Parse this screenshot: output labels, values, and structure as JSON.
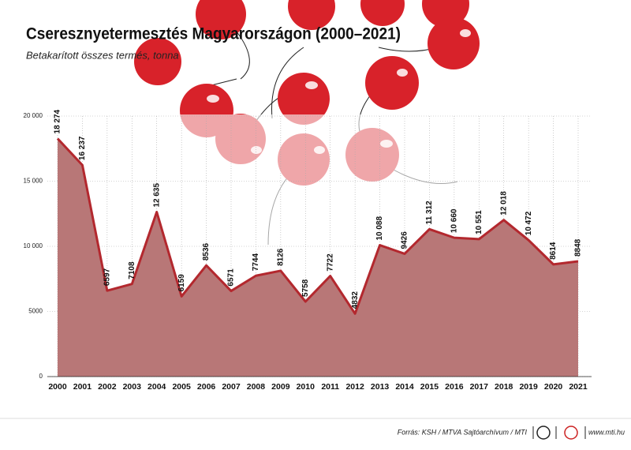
{
  "chart_data": {
    "type": "area",
    "title": "Cseresznyetermesztés Magyarországon (2000–2021)",
    "subtitle": "Betakarított összes termés, tonna",
    "categories": [
      "2000",
      "2001",
      "2002",
      "2003",
      "2004",
      "2005",
      "2006",
      "2007",
      "2008",
      "2009",
      "2010",
      "2011",
      "2012",
      "2013",
      "2014",
      "2015",
      "2016",
      "2017",
      "2018",
      "2019",
      "2020",
      "2021"
    ],
    "values": [
      18274,
      16237,
      6597,
      7108,
      12635,
      6159,
      8536,
      6571,
      7744,
      8126,
      5758,
      7722,
      4832,
      10088,
      9426,
      11312,
      10660,
      10551,
      12018,
      10472,
      8614,
      8848
    ],
    "value_labels": [
      "18 274",
      "16 237",
      "6597",
      "7108",
      "12 635",
      "6159",
      "8536",
      "6571",
      "7744",
      "8126",
      "5758",
      "7722",
      "4832",
      "10 088",
      "9426",
      "11 312",
      "10 660",
      "10 551",
      "12 018",
      "10 472",
      "8614",
      "8848"
    ],
    "color": "#b3282e",
    "fill_color": "#b87777",
    "ylim": [
      0,
      20000
    ],
    "yticks": [
      0,
      5000,
      {
        "value": 10000,
        "label": "10 000"
      },
      {
        "value": 15000,
        "label": "15 000"
      },
      {
        "value": 20000,
        "label": "20 000"
      }
    ],
    "grid": true,
    "source": "Forrás: KSH / MTVA Sajtóarchívum / MTI",
    "website": "www.mti.hu"
  }
}
